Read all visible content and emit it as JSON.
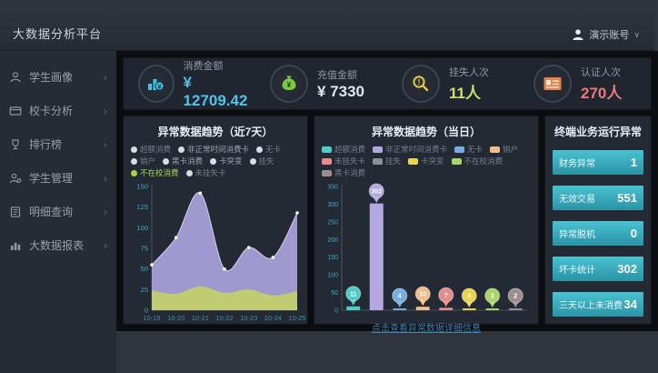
{
  "app": {
    "title": "大数据分析平台",
    "user": "演示账号",
    "user_caret": "∨"
  },
  "sidebar": {
    "items": [
      {
        "icon": "student-portrait-icon",
        "label": "学生画像",
        "arrow": "›"
      },
      {
        "icon": "campus-card-icon",
        "label": "校卡分析",
        "arrow": "›"
      },
      {
        "icon": "ranking-icon",
        "label": "排行榜",
        "arrow": "›"
      },
      {
        "icon": "student-manage-icon",
        "label": "学生管理",
        "arrow": "›"
      },
      {
        "icon": "detail-query-icon",
        "label": "明细查询",
        "arrow": "›"
      },
      {
        "icon": "bigdata-report-icon",
        "label": "大数据报表",
        "arrow": "›"
      }
    ]
  },
  "kpis": [
    {
      "icon": "consume-amount-icon",
      "icon_color": "#3fc2e8",
      "label": "消费金额",
      "value": "¥ 12709.42",
      "value_color": "#4fc3e8"
    },
    {
      "icon": "recharge-amount-icon",
      "icon_color": "#7ac943",
      "label": "充值金额",
      "value": "¥ 7330",
      "value_color": "#dfe7ec"
    },
    {
      "icon": "report-loss-icon",
      "icon_color": "#e8c94a",
      "label": "挂失人次",
      "value": "11人",
      "value_color": "#cde06a"
    },
    {
      "icon": "auth-count-icon",
      "icon_color": "#e8824a",
      "label": "认证人次",
      "value": "270人",
      "value_color": "#e87a7a"
    }
  ],
  "chart_data": [
    {
      "id": "trend7",
      "type": "area",
      "title": "异常数据趋势（近7天）",
      "x": [
        "10-19",
        "10-20",
        "10-21",
        "10-22",
        "10-23",
        "10-24",
        "10-25"
      ],
      "series": [
        {
          "name": "非正常时间消费卡",
          "color": "#a79fd8",
          "stroke": "#d6d0f0",
          "values": [
            55,
            88,
            142,
            50,
            76,
            64,
            118
          ]
        },
        {
          "name": "不在校消费",
          "color": "#c3cf6d",
          "stroke": "",
          "values": [
            24,
            20,
            29,
            21,
            25,
            18,
            23
          ]
        }
      ],
      "ylim": [
        0,
        150
      ],
      "yticks": [
        0,
        25,
        50,
        75,
        100,
        125,
        150
      ],
      "legend": [
        {
          "label": "超额消费",
          "dot": "#d7dde3",
          "text": "#747d89"
        },
        {
          "label": "非正常时间消费卡",
          "dot": "#d7dde3",
          "text": "#9aa3ae"
        },
        {
          "label": "无卡",
          "dot": "#d7dde3",
          "text": "#747d89"
        },
        {
          "label": "销户",
          "dot": "#d7dde3",
          "text": "#747d89"
        },
        {
          "label": "黑卡消费",
          "dot": "#d7dde3",
          "text": "#9aa3ae"
        },
        {
          "label": "卡突变",
          "dot": "#d7dde3",
          "text": "#9aa3ae"
        },
        {
          "label": "挂失",
          "dot": "#d7dde3",
          "text": "#747d89"
        },
        {
          "label": "不在校消费",
          "dot": "#a3d44e",
          "text": "#a3d44e"
        },
        {
          "label": "未挂失卡",
          "dot": "#d7dde3",
          "text": "#747d89"
        }
      ]
    },
    {
      "id": "today",
      "type": "bar",
      "title": "异常数据趋势（当日）",
      "categories": [
        "超额消费",
        "非正常时间消费卡",
        "无卡",
        "销户",
        "未挂失卡",
        "卡突变",
        "不在校消费",
        "黑卡消费"
      ],
      "values": [
        11,
        302,
        4,
        10,
        7,
        4,
        3,
        2
      ],
      "colors": [
        "#4ecdc4",
        "#b3a8e0",
        "#74aede",
        "#f2bd8a",
        "#e98b8b",
        "#e8d44e",
        "#a8d468",
        "#9d8d8d"
      ],
      "ylim": [
        0,
        350
      ],
      "yticks": [
        0,
        50,
        100,
        150,
        200,
        250,
        300,
        350
      ],
      "legend": [
        {
          "label": "超额消费",
          "color": "#4ecdc4"
        },
        {
          "label": "非正常时间消费卡",
          "color": "#b3a8e0"
        },
        {
          "label": "无卡",
          "color": "#74aede"
        },
        {
          "label": "销户",
          "color": "#f2bd8a"
        },
        {
          "label": "未挂失卡",
          "color": "#e98b8b"
        },
        {
          "label": "挂失",
          "color": "#8a909a"
        },
        {
          "label": "卡突变",
          "color": "#e8d44e"
        },
        {
          "label": "不在校消费",
          "color": "#a8d468"
        },
        {
          "label": "黑卡消费",
          "color": "#9d8d8d"
        }
      ],
      "footer_link": "点击查看异常数据详细信息"
    }
  ],
  "terminal": {
    "title": "终端业务运行异常",
    "rows": [
      {
        "label": "财务异常",
        "value": "1"
      },
      {
        "label": "无效交易",
        "value": "551"
      },
      {
        "label": "异常脱机",
        "value": "0"
      },
      {
        "label": "坏卡统计",
        "value": "302"
      },
      {
        "label": "三天以上未消费",
        "value": "34"
      }
    ]
  }
}
